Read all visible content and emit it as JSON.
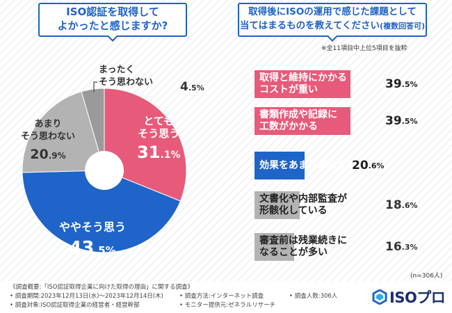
{
  "left_question": {
    "line1": "ISO認証を取得して",
    "line2": "よかったと感じますか?"
  },
  "right_question": {
    "line1": "取得後にISOの運用で感じた課題として",
    "line2": "当てはまるものを教えてください",
    "line2_suffix": "(複数回答可)"
  },
  "right_note": "※全11項目中上位5項目を抜粋",
  "sample_size": "(n=306人)",
  "colors": {
    "pink": "#e85a7a",
    "blue": "#1f64c8",
    "gray": "#b3b3b3",
    "darkgray": "#9a9a9a",
    "frame": "#1e62c7"
  },
  "chart_data": [
    {
      "type": "pie",
      "title": "ISO認証を取得してよかったと感じますか?",
      "slices": [
        {
          "label_line1": "とても",
          "label_line2": "そう思う",
          "value": 31.1,
          "value_int": "31",
          "value_dec": ".1",
          "pct": "%",
          "color": "#e85a7a"
        },
        {
          "label_line1": "ややそう思う",
          "label_line2": "",
          "value": 43.5,
          "value_int": "43",
          "value_dec": ".5",
          "pct": "%",
          "color": "#1f64c8"
        },
        {
          "label_line1": "あまり",
          "label_line2": "そう思わない",
          "value": 20.9,
          "value_int": "20",
          "value_dec": ".9",
          "pct": "%",
          "color": "#b3b3b3"
        },
        {
          "label_line1": "まったく",
          "label_line2": "そう思わない",
          "value": 4.5,
          "value_int": "4",
          "value_dec": ".5",
          "pct": "%",
          "color": "#9a9a9a"
        }
      ]
    },
    {
      "type": "bar",
      "title": "取得後にISOの運用で感じた課題として当てはまるものを教えてください(複数回答可)",
      "xlim": [
        0,
        50
      ],
      "bars": [
        {
          "line1": "取得と維持にかかる",
          "line2": "コストが重い",
          "value": 39.5,
          "value_int": "39",
          "value_dec": ".5",
          "pct": "%",
          "color": "#e85a7a",
          "text_color": "#ffffff"
        },
        {
          "line1": "書類作成や記録に",
          "line2": "工数がかかる",
          "value": 39.5,
          "value_int": "39",
          "value_dec": ".5",
          "pct": "%",
          "color": "#e85a7a",
          "text_color": "#ffffff"
        },
        {
          "line1": "効果をあまり感じない",
          "line2": "",
          "value": 20.6,
          "value_int": "20",
          "value_dec": ".6",
          "pct": "%",
          "color": "#1f64c8",
          "text_color": "#ffffff"
        },
        {
          "line1": "文書化や内部監査が",
          "line2": "形骸化している",
          "value": 18.6,
          "value_int": "18",
          "value_dec": ".6",
          "pct": "%",
          "color": "#b3b3b3",
          "text_color": "#222222"
        },
        {
          "line1": "審査前は残業続きに",
          "line2": "なることが多い",
          "value": 16.3,
          "value_int": "16",
          "value_dec": ".3",
          "pct": "%",
          "color": "#b3b3b3",
          "text_color": "#222222"
        }
      ]
    }
  ],
  "footer": {
    "overview": "《調査概要:「ISO認証取得企業に向けた取得の理由」に関する調査》",
    "period": "• 調査期間:2023年12月13日(水)〜2023年12月14日(木)",
    "method": "• 調査方法:インターネット調査",
    "people": "• 調査人数:306人",
    "target": "• 調査対象:ISO認証取得企業の経営者・経営幹部",
    "provider": "• モニター提供元:ゼネラルリサーチ"
  },
  "logo": {
    "text": "ISOプロ",
    "icon": "iso-pro-logo-icon"
  }
}
